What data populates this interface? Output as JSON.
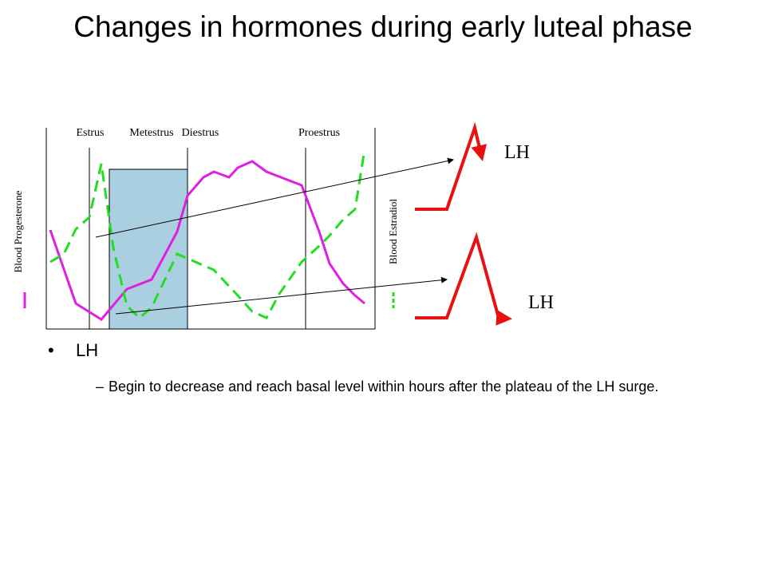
{
  "title": "Changes in hormones during early luteal phase",
  "figure": {
    "phases": [
      "Estrus",
      "Metestrus",
      "Diestrus",
      "Proestrus"
    ],
    "y_left_label": "Blood Progesterone",
    "y_right_label": "Blood Estradiol"
  },
  "lh_labels": [
    "LH",
    "LH"
  ],
  "bullets": [
    {
      "text": "LH",
      "sub": [
        "Begin to decrease and reach basal level within hours after the plateau of the LH surge."
      ]
    }
  ]
}
